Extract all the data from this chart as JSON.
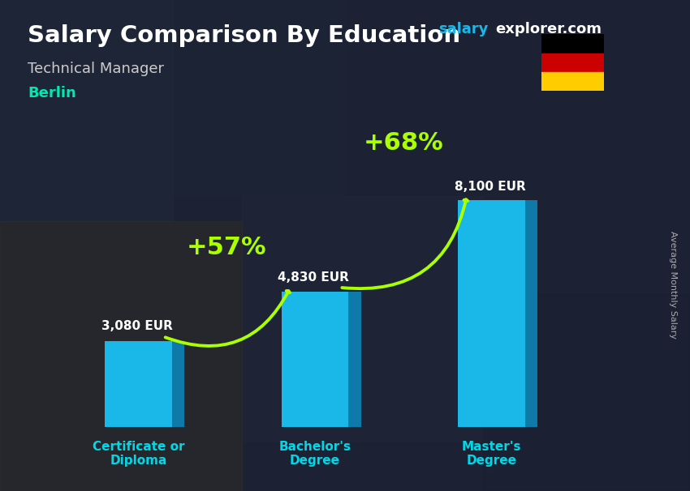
{
  "title": "Salary Comparison By Education",
  "subtitle": "Technical Manager",
  "city": "Berlin",
  "ylabel": "Average Monthly Salary",
  "categories": [
    "Certificate or\nDiploma",
    "Bachelor's\nDegree",
    "Master's\nDegree"
  ],
  "values": [
    3080,
    4830,
    8100
  ],
  "value_labels": [
    "3,080 EUR",
    "4,830 EUR",
    "8,100 EUR"
  ],
  "pct_labels": [
    "+57%",
    "+68%"
  ],
  "bar_color_face": "#1ab8e8",
  "bar_color_side": "#0d7aaa",
  "bar_color_top": "#50d8f8",
  "title_color": "#ffffff",
  "subtitle_color": "#cccccc",
  "city_color": "#00e8b0",
  "value_color": "#ffffff",
  "pct_color": "#aaff00",
  "arrow_color": "#66ee00",
  "xlabel_color": "#00d8e8",
  "watermark_salary_color": "#1ab8e8",
  "watermark_explorer_color": "#ffffff",
  "ylabel_color": "#aaaaaa",
  "ylim": [
    0,
    10500
  ],
  "bar_width": 0.38,
  "x_positions": [
    1,
    2,
    3
  ],
  "xlim": [
    0.45,
    3.85
  ],
  "figsize": [
    8.5,
    6.06
  ],
  "dpi": 100
}
